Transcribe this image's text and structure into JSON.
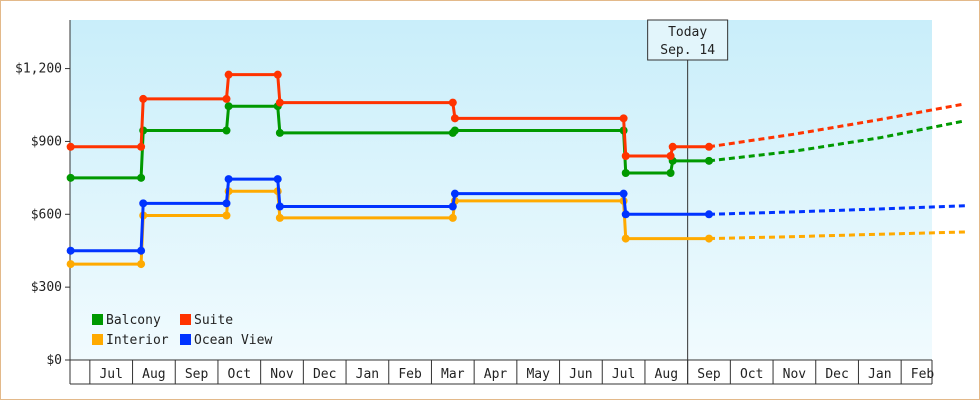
{
  "chart_data": {
    "type": "line",
    "ylim": [
      0,
      1400
    ],
    "y_ticks": [
      "$0",
      "$300",
      "$600",
      "$900",
      "$1,200"
    ],
    "y_tick_values": [
      0,
      300,
      600,
      900,
      1200
    ],
    "x_ticks": [
      "Jul",
      "Aug",
      "Sep",
      "Oct",
      "Nov",
      "Dec",
      "Jan",
      "Feb",
      "Mar",
      "Apr",
      "May",
      "Jun",
      "Jul",
      "Aug",
      "Sep",
      "Oct",
      "Nov",
      "Dec",
      "Jan",
      "Feb"
    ],
    "today": {
      "line1": "Today",
      "line2": "Sep. 14",
      "x": 14.5
    },
    "legend_position": "bottom-left",
    "series": [
      {
        "name": "Balcony",
        "color": "#009900",
        "points": [
          [
            0.05,
            750
          ],
          [
            1.7,
            750
          ],
          [
            1.75,
            945
          ],
          [
            3.7,
            945
          ],
          [
            3.75,
            1045
          ],
          [
            4.9,
            1045
          ],
          [
            4.95,
            935
          ],
          [
            9.0,
            935
          ],
          [
            9.05,
            945
          ],
          [
            13.0,
            945
          ],
          [
            13.05,
            770
          ],
          [
            14.1,
            770
          ],
          [
            14.15,
            820
          ],
          [
            15.0,
            820
          ]
        ],
        "forecast": [
          [
            15.0,
            820
          ],
          [
            17.0,
            860
          ],
          [
            19.0,
            915
          ],
          [
            21.0,
            985
          ]
        ]
      },
      {
        "name": "Suite",
        "color": "#ff3300",
        "points": [
          [
            0.05,
            878
          ],
          [
            1.7,
            878
          ],
          [
            1.75,
            1075
          ],
          [
            3.7,
            1075
          ],
          [
            3.75,
            1175
          ],
          [
            4.9,
            1175
          ],
          [
            4.95,
            1060
          ],
          [
            9.0,
            1060
          ],
          [
            9.05,
            995
          ],
          [
            13.0,
            995
          ],
          [
            13.05,
            840
          ],
          [
            14.1,
            840
          ],
          [
            14.15,
            878
          ],
          [
            15.0,
            878
          ]
        ],
        "forecast": [
          [
            15.0,
            878
          ],
          [
            17.0,
            930
          ],
          [
            19.0,
            990
          ],
          [
            21.0,
            1055
          ]
        ]
      },
      {
        "name": "Interior",
        "color": "#ffaa00",
        "points": [
          [
            0.05,
            395
          ],
          [
            1.7,
            395
          ],
          [
            1.75,
            595
          ],
          [
            3.7,
            595
          ],
          [
            3.75,
            695
          ],
          [
            4.9,
            695
          ],
          [
            4.95,
            585
          ],
          [
            9.0,
            585
          ],
          [
            9.05,
            655
          ],
          [
            13.0,
            655
          ],
          [
            13.05,
            500
          ],
          [
            15.0,
            500
          ]
        ],
        "forecast": [
          [
            15.0,
            500
          ],
          [
            17.0,
            508
          ],
          [
            19.0,
            518
          ],
          [
            21.0,
            527
          ]
        ]
      },
      {
        "name": "Ocean View",
        "color": "#0033ff",
        "points": [
          [
            0.05,
            450
          ],
          [
            1.7,
            450
          ],
          [
            1.75,
            645
          ],
          [
            3.7,
            645
          ],
          [
            3.75,
            745
          ],
          [
            4.9,
            745
          ],
          [
            4.95,
            632
          ],
          [
            9.0,
            632
          ],
          [
            9.05,
            685
          ],
          [
            13.0,
            685
          ],
          [
            13.05,
            600
          ],
          [
            15.0,
            600
          ]
        ],
        "forecast": [
          [
            15.0,
            600
          ],
          [
            17.0,
            610
          ],
          [
            19.0,
            622
          ],
          [
            21.0,
            635
          ]
        ]
      }
    ]
  }
}
